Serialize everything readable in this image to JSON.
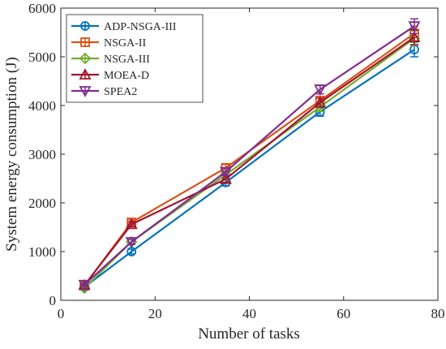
{
  "chart_data": {
    "type": "line",
    "xlabel": "Number of tasks",
    "ylabel": "System energy consumption (J)",
    "xlim": [
      0,
      80
    ],
    "ylim": [
      0,
      6000
    ],
    "xticks": [
      "0",
      "20",
      "40",
      "60",
      "80"
    ],
    "yticks": [
      "0",
      "1000",
      "2000",
      "3000",
      "4000",
      "5000",
      "6000"
    ],
    "grid": false,
    "legend_position": "top-left",
    "x": [
      5,
      15,
      35,
      55,
      75
    ],
    "series": [
      {
        "name": "ADP-NSGA-III",
        "color": "#0072BD",
        "marker": "circle",
        "values": [
          270,
          1000,
          2420,
          3870,
          5150
        ],
        "errors": [
          20,
          50,
          70,
          90,
          150
        ]
      },
      {
        "name": "NSGA-II",
        "color": "#D95319",
        "marker": "square",
        "values": [
          300,
          1600,
          2720,
          4100,
          5480
        ],
        "errors": [
          20,
          50,
          70,
          90,
          150
        ]
      },
      {
        "name": "NSGA-III",
        "color": "#77AC30",
        "marker": "diamond",
        "values": [
          250,
          1200,
          2580,
          3970,
          5380
        ],
        "errors": [
          20,
          50,
          70,
          90,
          150
        ]
      },
      {
        "name": "MOEA-D",
        "color": "#A2142F",
        "marker": "triangle-up",
        "values": [
          310,
          1560,
          2490,
          4060,
          5400
        ],
        "errors": [
          20,
          50,
          70,
          90,
          150
        ]
      },
      {
        "name": "SPEA2",
        "color": "#7E2F8E",
        "marker": "triangle-down",
        "values": [
          320,
          1200,
          2640,
          4330,
          5630
        ],
        "errors": [
          20,
          50,
          70,
          90,
          150
        ]
      }
    ]
  }
}
